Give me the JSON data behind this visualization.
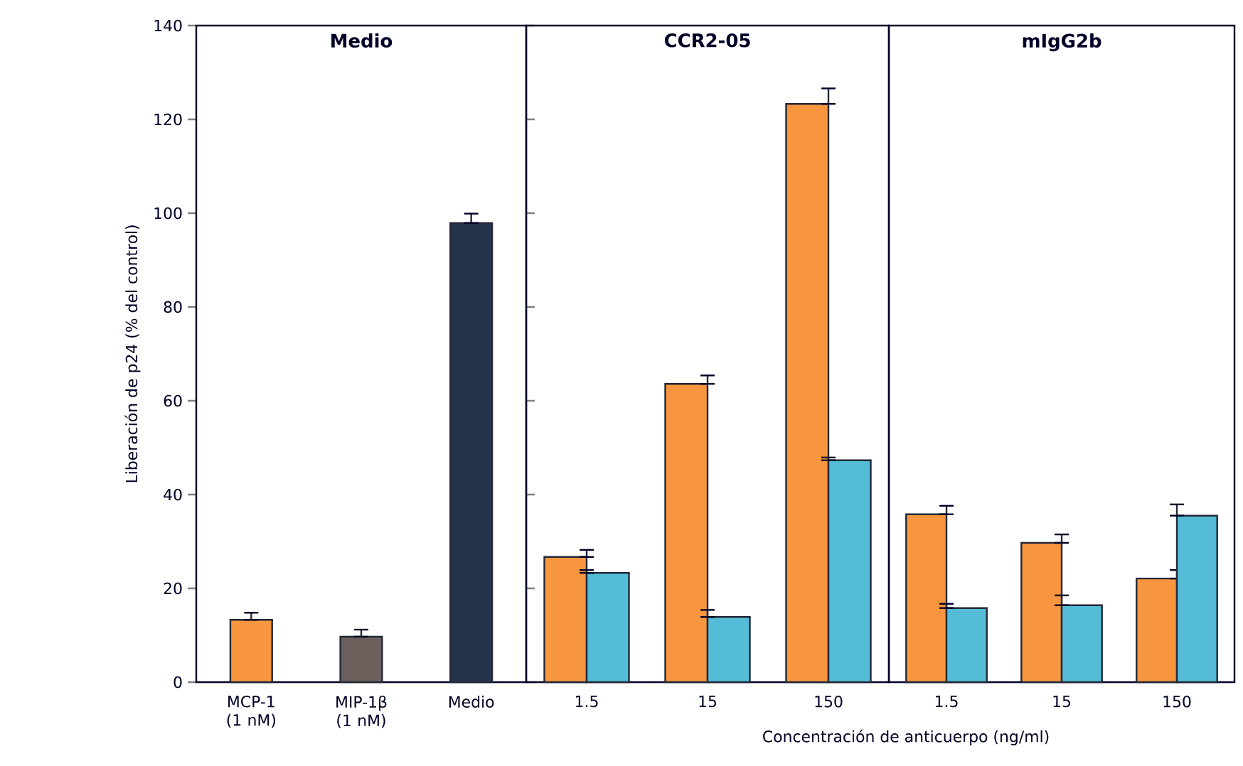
{
  "chart_data": [
    {
      "type": "bar",
      "title": "Medio",
      "ylabel": "Liberación de p24 (% del control)",
      "categories": [
        "MCP-1 (1 nM)",
        "MIP-1β (1 nM)",
        "Medio"
      ],
      "values": [
        13.3,
        9.7,
        97.9
      ],
      "colors": [
        "#f7963f",
        "#6b605c",
        "#26334c"
      ],
      "errors": [
        [
          13.3,
          14.8
        ],
        [
          9.7,
          11.2
        ],
        [
          97.9,
          99.9
        ]
      ],
      "ylim": [
        0,
        140
      ],
      "yticks": [
        0,
        20,
        40,
        60,
        80,
        100,
        120,
        140
      ]
    },
    {
      "type": "bar",
      "title": "CCR2-05",
      "xlabel": "Concentración de anticuerpo (ng/ml)",
      "categories": [
        "1.5",
        "15",
        "150"
      ],
      "ylim": [
        0,
        140
      ],
      "tick_labels": "x",
      "series": [
        {
          "color": "#f7963f",
          "values": [
            26.7,
            63.6,
            123.3
          ],
          "errors": [
            [
              26.7,
              28.2
            ],
            [
              63.6,
              65.4
            ],
            [
              123.3,
              126.6
            ]
          ]
        },
        {
          "color": "#55bcd8",
          "values": [
            23.3,
            13.9,
            47.3
          ],
          "errors": [
            [
              23.3,
              23.9
            ],
            [
              13.9,
              15.4
            ],
            [
              47.3,
              47.9
            ]
          ]
        }
      ]
    },
    {
      "type": "bar",
      "title": "mIgG2b",
      "categories": [
        "1.5",
        "15",
        "150"
      ],
      "ylim": [
        0,
        140
      ],
      "tick_labels": "x",
      "series": [
        {
          "color": "#f7963f",
          "values": [
            35.8,
            29.7,
            22.1
          ],
          "errors": [
            [
              35.8,
              37.6
            ],
            [
              29.7,
              31.5
            ],
            [
              22.1,
              23.9
            ]
          ]
        },
        {
          "color": "#55bcd8",
          "values": [
            15.8,
            16.4,
            35.5
          ],
          "errors": [
            [
              15.8,
              16.7
            ],
            [
              16.4,
              18.5
            ],
            [
              35.5,
              37.9
            ]
          ]
        }
      ]
    }
  ]
}
